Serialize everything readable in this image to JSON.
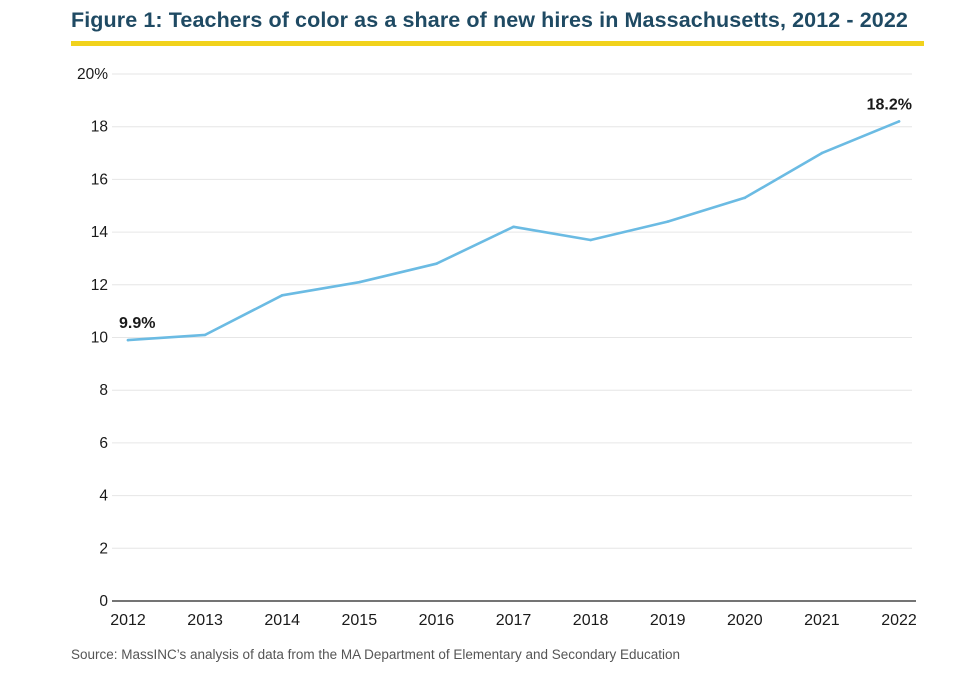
{
  "header": {
    "title": "Figure 1: Teachers of color as a share of new hires in Massachusetts, 2012 - 2022"
  },
  "footer": {
    "source": "Source: MassINC’s analysis of data from the MA Department of Elementary and Secondary Education"
  },
  "colors": {
    "title": "#1f4a63",
    "rule": "#f1d21c",
    "line": "#6bbbe3",
    "grid": "#e6e6e6",
    "axis": "#222222"
  },
  "chart_data": {
    "type": "line",
    "title": "Figure 1: Teachers of color as a share of new hires in Massachusetts, 2012 - 2022",
    "xlabel": "",
    "ylabel": "",
    "x": [
      "2012",
      "2013",
      "2014",
      "2015",
      "2016",
      "2017",
      "2018",
      "2019",
      "2020",
      "2021",
      "2022"
    ],
    "series": [
      {
        "values": [
          9.9,
          10.1,
          11.6,
          12.1,
          12.8,
          14.2,
          13.7,
          14.4,
          15.3,
          17.0,
          18.2
        ]
      }
    ],
    "ylim": [
      0,
      20
    ],
    "y_ticks": [
      "0",
      "2",
      "4",
      "6",
      "8",
      "10",
      "12",
      "14",
      "16",
      "18",
      "20%"
    ],
    "annotations": [
      {
        "x": "2012",
        "text": "9.9%"
      },
      {
        "x": "2022",
        "text": "18.2%"
      }
    ],
    "grid": true,
    "legend": "none"
  }
}
